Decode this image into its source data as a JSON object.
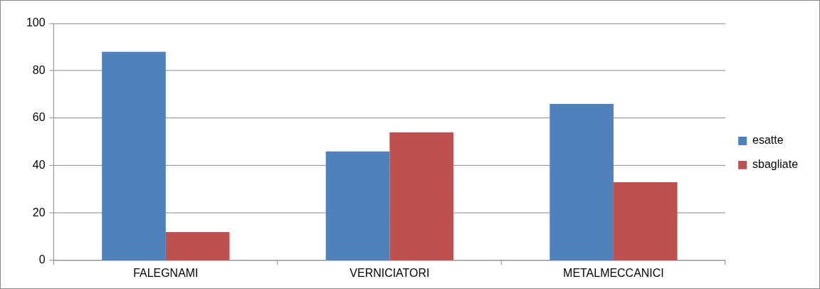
{
  "chart_data": {
    "type": "bar",
    "categories": [
      "FALEGNAMI",
      "VERNICIATORI",
      "METALMECCANICI"
    ],
    "series": [
      {
        "name": "esatte",
        "color": "#4f81bd",
        "values": [
          88,
          46,
          66
        ]
      },
      {
        "name": "sbagliate",
        "color": "#c0504d",
        "values": [
          12,
          54,
          33
        ]
      }
    ],
    "ylim": [
      0,
      100
    ],
    "yticks": [
      0,
      20,
      40,
      60,
      80,
      100
    ],
    "grid": "y",
    "legend": "right"
  }
}
